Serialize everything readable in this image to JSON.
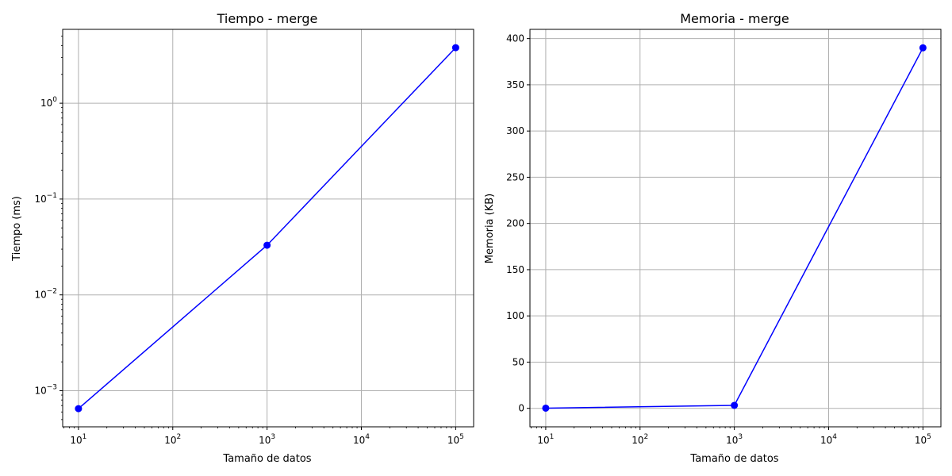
{
  "chart_data": [
    {
      "type": "line",
      "title": "Tiempo - merge",
      "xlabel": "Tamaño de datos",
      "ylabel": "Tiempo (ms)",
      "xscale": "log",
      "yscale": "log",
      "grid": true,
      "xlim": [
        6.8,
        155000
      ],
      "ylim": [
        0.00042,
        5.9
      ],
      "x_ticks": [
        {
          "value": 10,
          "base": "10",
          "exp": "1"
        },
        {
          "value": 100,
          "base": "10",
          "exp": "2"
        },
        {
          "value": 1000,
          "base": "10",
          "exp": "3"
        },
        {
          "value": 10000,
          "base": "10",
          "exp": "4"
        },
        {
          "value": 100000,
          "base": "10",
          "exp": "5"
        }
      ],
      "y_ticks": [
        {
          "value": 0.001,
          "base": "10",
          "exp": "−3"
        },
        {
          "value": 0.01,
          "base": "10",
          "exp": "−2"
        },
        {
          "value": 0.1,
          "base": "10",
          "exp": "−1"
        },
        {
          "value": 1,
          "base": "10",
          "exp": "0"
        }
      ],
      "series": [
        {
          "color": "#0000ff",
          "marker": "circle",
          "x": [
            10,
            1000,
            100000
          ],
          "y": [
            0.00065,
            0.033,
            3.8
          ]
        }
      ]
    },
    {
      "type": "line",
      "title": "Memoria - merge",
      "xlabel": "Tamaño de datos",
      "ylabel": "Memoria (KB)",
      "xscale": "log",
      "yscale": "linear",
      "grid": true,
      "xlim": [
        6.8,
        155000
      ],
      "ylim": [
        -20,
        410
      ],
      "x_ticks": [
        {
          "value": 10,
          "base": "10",
          "exp": "1"
        },
        {
          "value": 100,
          "base": "10",
          "exp": "2"
        },
        {
          "value": 1000,
          "base": "10",
          "exp": "3"
        },
        {
          "value": 10000,
          "base": "10",
          "exp": "4"
        },
        {
          "value": 100000,
          "base": "10",
          "exp": "5"
        }
      ],
      "y_ticks": [
        {
          "value": 0,
          "label": "0"
        },
        {
          "value": 50,
          "label": "50"
        },
        {
          "value": 100,
          "label": "100"
        },
        {
          "value": 150,
          "label": "150"
        },
        {
          "value": 200,
          "label": "200"
        },
        {
          "value": 250,
          "label": "250"
        },
        {
          "value": 300,
          "label": "300"
        },
        {
          "value": 350,
          "label": "350"
        },
        {
          "value": 400,
          "label": "400"
        }
      ],
      "series": [
        {
          "color": "#0000ff",
          "marker": "circle",
          "x": [
            10,
            1000,
            100000
          ],
          "y": [
            0.2,
            3.2,
            390
          ]
        }
      ]
    }
  ]
}
